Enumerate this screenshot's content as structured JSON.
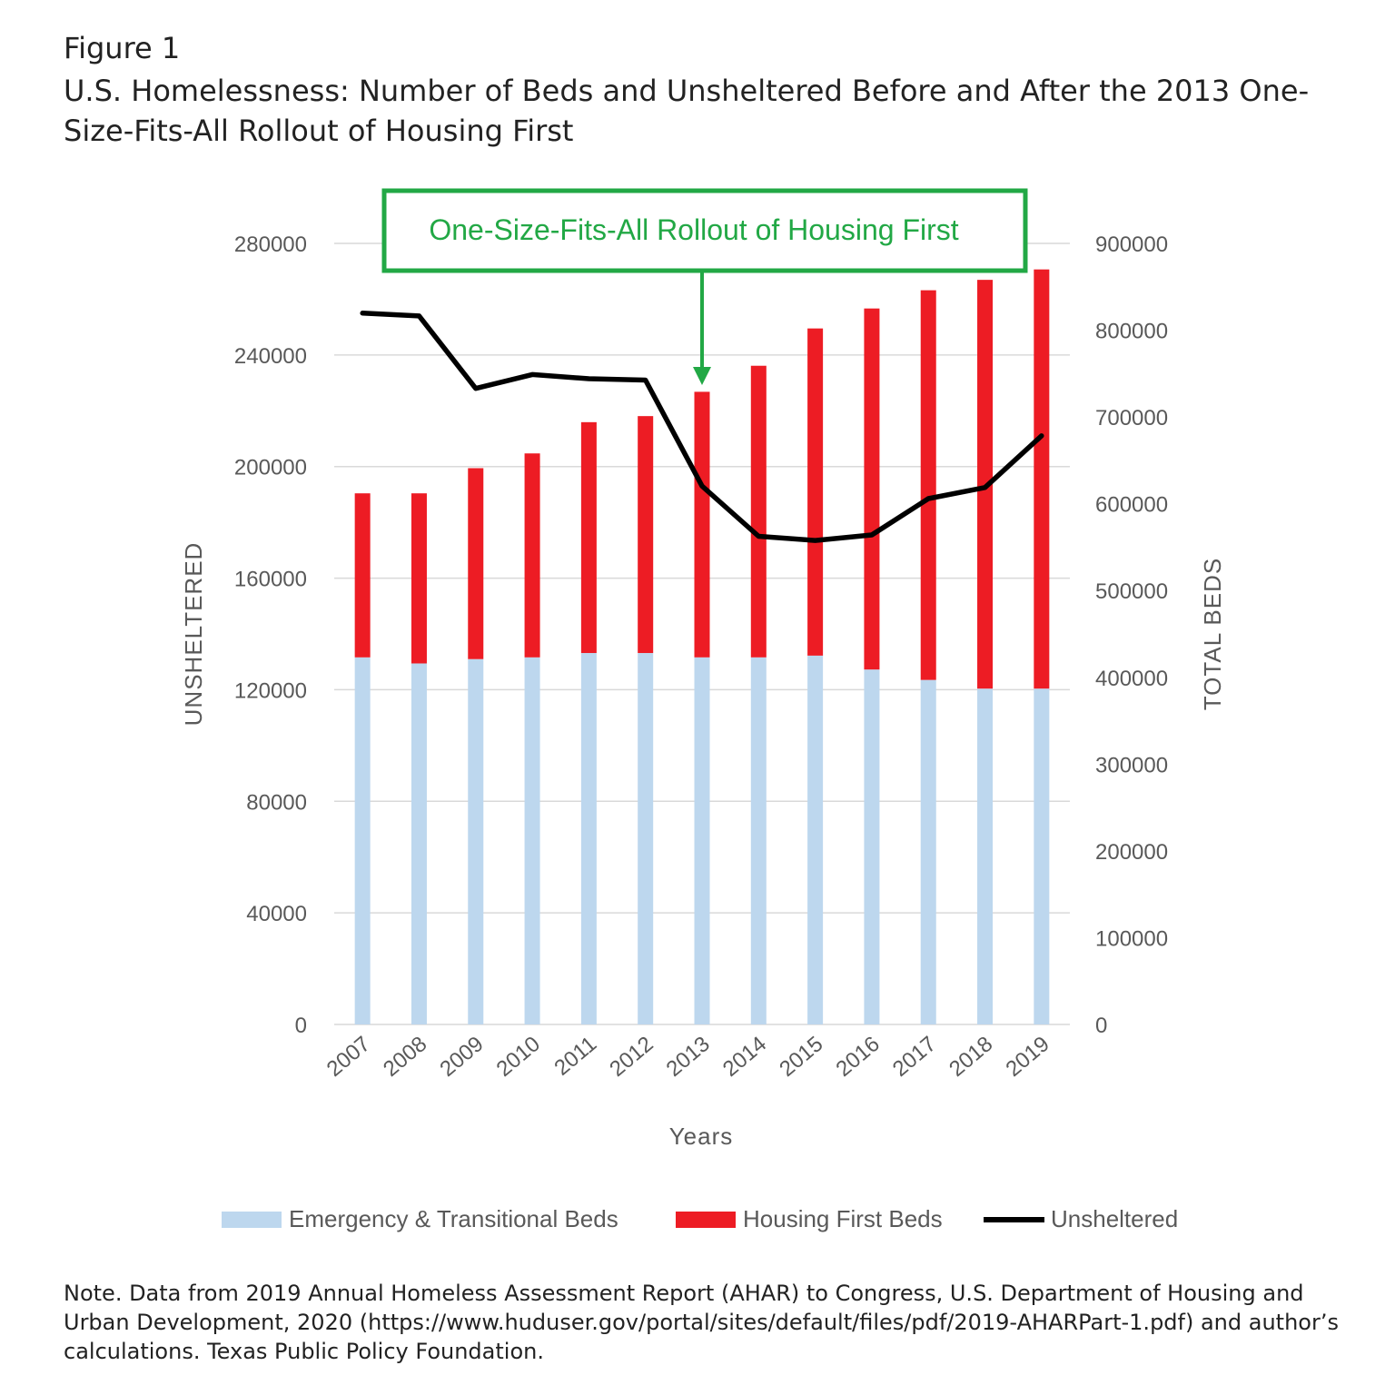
{
  "figure_label": "Figure 1",
  "title": "U.S. Homelessness: Number of Beds and Unsheltered Before and After the 2013 One-Size-Fits-All Rollout of Housing First",
  "note": "Note. Data from 2019 Annual Homeless Assessment Report (AHAR) to Congress, U.S. Department of Housing and Urban Development, 2020 (https://www.huduser.gov/portal/sites/default/files/pdf/2019-AHARPart-1.pdf) and author’s calculations. Texas Public Policy Foundation.",
  "colors": {
    "emergency": "#bdd7ee",
    "housing_first": "#ed1c24",
    "unsheltered": "#000000",
    "annotation": "#22a845",
    "grid": "#d9d9d9"
  },
  "chart_data": {
    "type": "bar",
    "stacked": true,
    "categories": [
      "2007",
      "2008",
      "2009",
      "2010",
      "2011",
      "2012",
      "2013",
      "2014",
      "2015",
      "2016",
      "2017",
      "2018",
      "2019"
    ],
    "xlabel": "Years",
    "ylabel": "UNSHELTERED",
    "y2label": "TOTAL BEDS",
    "ylim": [
      0,
      280000
    ],
    "y_ticks": [
      "0",
      "40000",
      "80000",
      "120000",
      "160000",
      "200000",
      "240000",
      "280000"
    ],
    "y2lim": [
      0,
      900000
    ],
    "y2_ticks": [
      "0",
      "100000",
      "200000",
      "300000",
      "400000",
      "500000",
      "600000",
      "700000",
      "800000",
      "900000"
    ],
    "grid": true,
    "legend_position": "bottom",
    "annotation": {
      "text": "One-Size-Fits-All Rollout of Housing First",
      "points_to": "2013"
    },
    "series": [
      {
        "name": "Emergency & Transitional Beds",
        "kind": "bar",
        "axis": "right",
        "color_key": "emergency",
        "values": [
          423000,
          416000,
          421000,
          423000,
          428000,
          428000,
          423000,
          423000,
          425000,
          409000,
          397000,
          387000,
          387000
        ]
      },
      {
        "name": "Housing First Beds",
        "kind": "bar",
        "axis": "right",
        "color_key": "housing_first",
        "values": [
          189000,
          196000,
          220000,
          235000,
          266000,
          273000,
          306000,
          336000,
          377000,
          416000,
          449000,
          471000,
          483000
        ]
      },
      {
        "name": "Unsheltered",
        "kind": "line",
        "axis": "left",
        "color_key": "unsheltered",
        "values": [
          255000,
          254000,
          228000,
          233000,
          231500,
          231000,
          193000,
          175000,
          173500,
          175500,
          188500,
          192500,
          211000
        ]
      }
    ]
  }
}
